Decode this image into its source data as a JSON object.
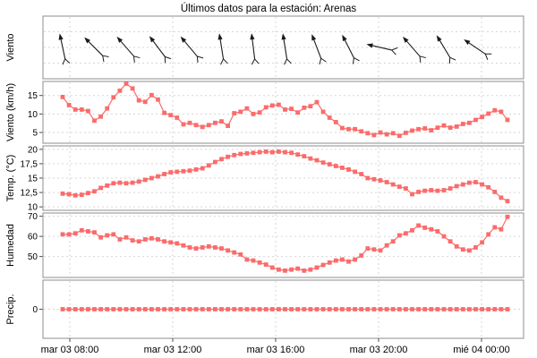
{
  "title": "Últimos datos para la estación: Arenas",
  "colors": {
    "series": "#FB6B6B",
    "grid": "#D6D6D6",
    "panel_border": "#8C8C8C",
    "tick": "#4D4D4D",
    "arrow": "#1A1A1A",
    "background": "#FFFFFF",
    "text": "#000000"
  },
  "x_axis": {
    "tick_labels": [
      "mar 03 08:00",
      "mar 03 12:00",
      "mar 03 16:00",
      "mar 03 20:00",
      "mié 04 00:00"
    ]
  },
  "chart_data": [
    {
      "type": "wind-arrows",
      "ylabel": "Viento",
      "arrow_angles_deg": [
        102,
        135,
        131,
        127,
        130,
        99,
        97,
        99,
        111,
        117,
        167,
        131,
        121,
        146
      ]
    },
    {
      "type": "line",
      "ylabel": "Viento (km/h)",
      "yticks": [
        5,
        10,
        15
      ],
      "ytick_labels": [
        "5",
        "10",
        "15"
      ],
      "ylim": [
        2.1,
        18.8
      ],
      "values": [
        14.6,
        12.4,
        11.2,
        11.2,
        10.8,
        8.2,
        9.3,
        11.5,
        14.5,
        16.3,
        18.2,
        16.9,
        13.7,
        13.3,
        15.1,
        13.9,
        10.3,
        9.7,
        9.0,
        7.2,
        7.6,
        7.0,
        6.5,
        7.0,
        7.6,
        8.0,
        6.8,
        10.2,
        10.6,
        11.5,
        10.0,
        10.4,
        11.8,
        12.3,
        12.5,
        11.2,
        11.4,
        10.4,
        11.7,
        12.1,
        13.2,
        10.6,
        9.0,
        7.8,
        6.2,
        5.9,
        5.9,
        5.3,
        4.8,
        4.3,
        5.0,
        4.5,
        4.8,
        4.1,
        4.9,
        5.5,
        5.9,
        6.1,
        5.6,
        6.3,
        6.9,
        6.3,
        6.6,
        7.3,
        7.6,
        8.4,
        9.2,
        10.1,
        11.0,
        10.6,
        8.4
      ]
    },
    {
      "type": "line",
      "ylabel": "Temp. (°C)",
      "yticks": [
        10,
        12.5,
        15,
        17.5,
        20
      ],
      "ytick_labels": [
        "10",
        "12,5",
        "15",
        "17,5",
        "20"
      ],
      "ylim": [
        9.4,
        20.6
      ],
      "values": [
        12.3,
        12.2,
        12.0,
        12.1,
        12.4,
        12.7,
        13.3,
        13.7,
        14.1,
        14.2,
        14.1,
        14.2,
        14.4,
        14.7,
        15.0,
        15.3,
        15.7,
        16.0,
        16.1,
        16.2,
        16.3,
        16.5,
        16.7,
        17.2,
        17.8,
        18.3,
        18.7,
        19.0,
        19.2,
        19.3,
        19.4,
        19.5,
        19.6,
        19.5,
        19.6,
        19.5,
        19.4,
        19.1,
        18.8,
        18.4,
        18.1,
        17.7,
        17.4,
        17.1,
        16.8,
        16.5,
        16.1,
        15.7,
        15.0,
        14.8,
        14.6,
        14.3,
        13.9,
        13.5,
        13.2,
        12.2,
        12.6,
        12.8,
        12.9,
        12.8,
        12.9,
        13.2,
        13.6,
        13.9,
        14.2,
        14.3,
        13.9,
        13.4,
        12.6,
        11.6,
        11.0
      ]
    },
    {
      "type": "line",
      "ylabel": "Humedad",
      "yticks": [
        50,
        60,
        70
      ],
      "ytick_labels": [
        "50",
        "60",
        "70"
      ],
      "ylim": [
        39.6,
        71.6
      ],
      "values": [
        61,
        61,
        61.5,
        63,
        62.5,
        62,
        59.5,
        60.5,
        61,
        58.5,
        59.5,
        58,
        57.5,
        58.5,
        59,
        58.5,
        57.5,
        57,
        56.5,
        55.5,
        54.5,
        54,
        54.5,
        55,
        54.5,
        54,
        53,
        52,
        51,
        48.5,
        48,
        47,
        46,
        44.5,
        43.5,
        43,
        43.5,
        44,
        43,
        43.5,
        44.5,
        45.8,
        47,
        48,
        48.5,
        47.5,
        48.5,
        50.5,
        54,
        53.5,
        53,
        55.5,
        57.5,
        60.5,
        61.5,
        63,
        65.4,
        64.3,
        63.5,
        62.5,
        60,
        57.5,
        55,
        53.5,
        53,
        54.5,
        57,
        61,
        64.5,
        63.5,
        69.7
      ]
    },
    {
      "type": "line",
      "ylabel": "Precip.",
      "yticks": [
        0
      ],
      "ytick_labels": [
        "0"
      ],
      "ylim": [
        -1,
        1
      ],
      "values": [
        0,
        0,
        0,
        0,
        0,
        0,
        0,
        0,
        0,
        0,
        0,
        0,
        0,
        0,
        0,
        0,
        0,
        0,
        0,
        0,
        0,
        0,
        0,
        0,
        0,
        0,
        0,
        0,
        0,
        0,
        0,
        0,
        0,
        0,
        0,
        0,
        0,
        0,
        0,
        0,
        0,
        0,
        0,
        0,
        0,
        0,
        0,
        0,
        0,
        0,
        0,
        0,
        0,
        0,
        0,
        0,
        0,
        0,
        0,
        0,
        0,
        0,
        0,
        0,
        0,
        0,
        0,
        0,
        0,
        0,
        0
      ]
    }
  ]
}
